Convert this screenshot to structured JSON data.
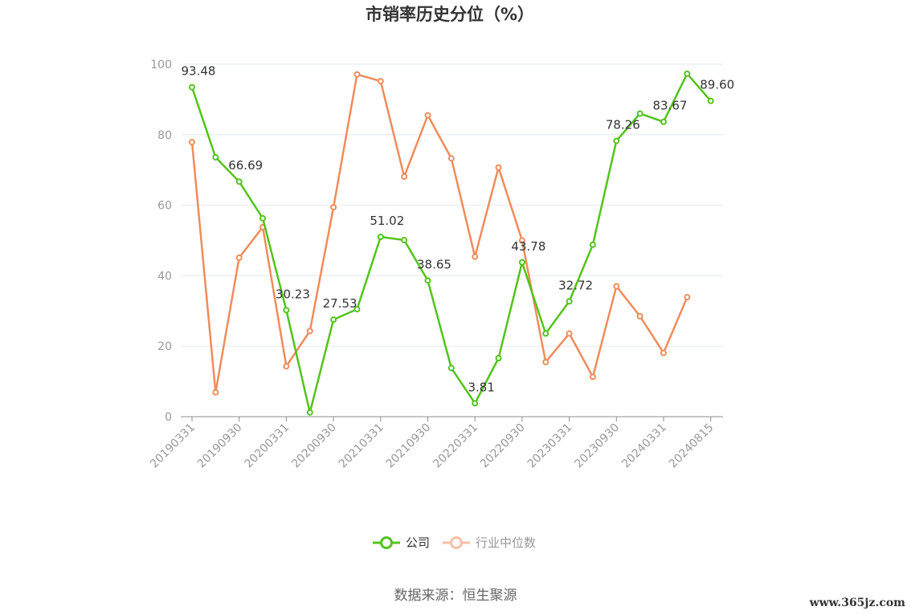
{
  "chart_data": {
    "type": "line",
    "title": "市销率历史分位（%）",
    "ylim": [
      0,
      100
    ],
    "yticks": [
      0,
      20,
      40,
      60,
      80,
      100
    ],
    "xtick_labels": [
      "20190331",
      "20190930",
      "20200331",
      "20200930",
      "20210331",
      "20210930",
      "20220331",
      "20220930",
      "20230331",
      "20230930",
      "20240331",
      "20240815"
    ],
    "x": [
      "20190331",
      "20190630",
      "20190930",
      "20191231",
      "20200331",
      "20200630",
      "20200930",
      "20201231",
      "20210331",
      "20210630",
      "20210930",
      "20211231",
      "20220331",
      "20220630",
      "20220930",
      "20221231",
      "20230331",
      "20230630",
      "20230930",
      "20231231",
      "20240331",
      "20240630",
      "20240815"
    ],
    "series": [
      {
        "name": "公司",
        "color": "#52c41a",
        "values": [
          93.48,
          73.6,
          66.69,
          56.3,
          30.23,
          1.2,
          27.53,
          30.5,
          51.02,
          50.1,
          38.65,
          13.8,
          3.81,
          16.6,
          43.78,
          23.6,
          32.72,
          48.8,
          78.26,
          86.0,
          83.67,
          97.3,
          89.6
        ],
        "labels": [
          "93.48",
          "",
          "66.69",
          "",
          "30.23",
          "",
          "27.53",
          "",
          "51.02",
          "",
          "38.65",
          "",
          "3.81",
          "",
          "43.78",
          "",
          "32.72",
          "",
          "78.26",
          "",
          "83.67",
          "",
          "89.60"
        ]
      },
      {
        "name": "行业中位数",
        "color": "#f08c5a",
        "values": [
          77.9,
          6.9,
          45.1,
          53.8,
          14.3,
          24.3,
          59.4,
          97.1,
          95.2,
          68.1,
          85.5,
          73.3,
          45.4,
          70.7,
          50.0,
          15.5,
          23.6,
          11.3,
          37.0,
          28.5,
          18.1,
          33.9,
          null
        ]
      }
    ],
    "grid": "horizontal",
    "legend_position": "bottom-center"
  },
  "legend": {
    "company": "公司",
    "industry": "行业中位数"
  },
  "source_text": "数据来源：恒生聚源",
  "watermark": "www.365jz.com"
}
